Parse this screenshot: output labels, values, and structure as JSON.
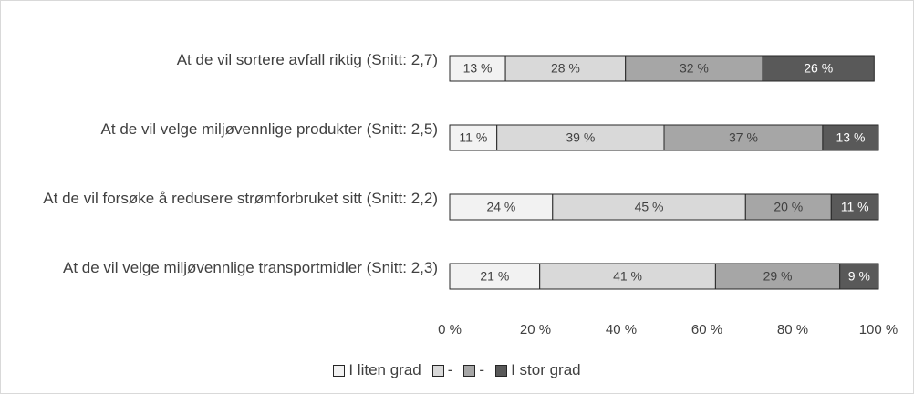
{
  "chart_data": {
    "type": "stacked-barh",
    "categories": [
      "At de vil sortere avfall riktig (Snitt: 2,7)",
      "At de vil velge miljøvennlige produkter (Snitt: 2,5)",
      "At de vil forsøke å redusere strømforbruket sitt (Snitt: 2,2)",
      "At de vil velge miljøvennlige transportmidler (Snitt: 2,3)"
    ],
    "series": [
      {
        "name": "I liten grad",
        "color": "#f2f2f2",
        "values": [
          13,
          11,
          24,
          21
        ],
        "value_labels": [
          "13 %",
          "11 %",
          "24 %",
          "21 %"
        ]
      },
      {
        "name": "-",
        "color": "#d9d9d9",
        "values": [
          28,
          39,
          45,
          41
        ],
        "value_labels": [
          "28 %",
          "39 %",
          "45 %",
          "41 %"
        ]
      },
      {
        "name": "-",
        "color": "#a6a6a6",
        "values": [
          32,
          37,
          20,
          29
        ],
        "value_labels": [
          "32 %",
          "37 %",
          "20 %",
          "29 %"
        ]
      },
      {
        "name": "I stor grad",
        "color": "#595959",
        "values": [
          26,
          13,
          11,
          9
        ],
        "value_labels": [
          "26 %",
          "13 %",
          "11 %",
          "9 %"
        ]
      }
    ],
    "xlim": [
      0,
      100
    ],
    "xticks": [
      {
        "value": 0,
        "label": "0 %"
      },
      {
        "value": 20,
        "label": "20 %"
      },
      {
        "value": 40,
        "label": "40 %"
      },
      {
        "value": 60,
        "label": "60 %"
      },
      {
        "value": 80,
        "label": "80 %"
      },
      {
        "value": 100,
        "label": "100 %"
      }
    ],
    "legend": "bottom"
  }
}
